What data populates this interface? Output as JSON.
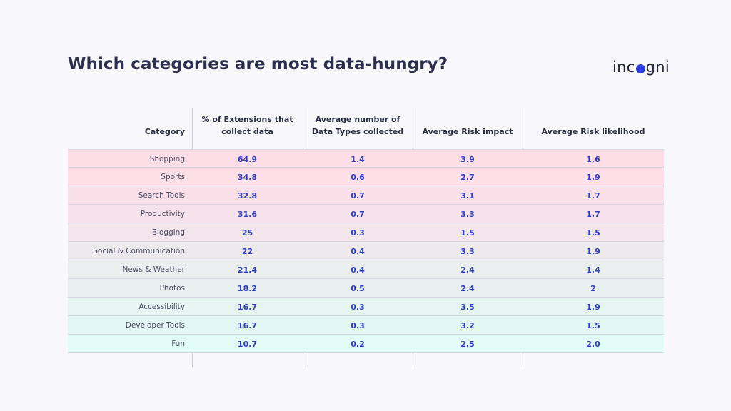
{
  "title": "Which categories are most data-hungry?",
  "logo": {
    "text_before": "inc",
    "text_after": "gni",
    "dot_color": "#2a3cdb"
  },
  "chart_data": {
    "type": "table",
    "columns": [
      "Category",
      "% of Extensions that collect data",
      "Average number of Data Types collected",
      "Average Risk impact",
      "Average Risk likelihood"
    ],
    "column_lines": [
      [
        "Category"
      ],
      [
        "% of Extensions that",
        "collect data"
      ],
      [
        "Average number of",
        "Data Types collected"
      ],
      [
        "Average Risk impact"
      ],
      [
        "Average Risk likelihood"
      ]
    ],
    "rows": [
      [
        "Shopping",
        "64.9",
        "1.4",
        "3.9",
        "1.6"
      ],
      [
        "Sports",
        "34.8",
        "0.6",
        "2.7",
        "1.9"
      ],
      [
        "Search Tools",
        "32.8",
        "0.7",
        "3.1",
        "1.7"
      ],
      [
        "Productivity",
        "31.6",
        "0.7",
        "3.3",
        "1.7"
      ],
      [
        "Blogging",
        "25",
        "0.3",
        "1.5",
        "1.5"
      ],
      [
        "Social & Communication",
        "22",
        "0.4",
        "3.3",
        "1.9"
      ],
      [
        "News & Weather",
        "21.4",
        "0.4",
        "2.4",
        "1.4"
      ],
      [
        "Photos",
        "18.2",
        "0.5",
        "2.4",
        "2"
      ],
      [
        "Accessibility",
        "16.7",
        "0.3",
        "3.5",
        "1.9"
      ],
      [
        "Developer Tools",
        "16.7",
        "0.3",
        "3.2",
        "1.5"
      ],
      [
        "Fun",
        "10.7",
        "0.2",
        "2.5",
        "2.0"
      ]
    ],
    "row_colors": [
      "#fddde6",
      "#fcdfe7",
      "#f9e0e8",
      "#f6e2ea",
      "#f2e6ec",
      "#edeaee",
      "#ebeeee",
      "#e8f0ef",
      "#e5f5f2",
      "#e3f8f4",
      "#e1fbf6"
    ],
    "value_color": "#2e3ec7"
  }
}
